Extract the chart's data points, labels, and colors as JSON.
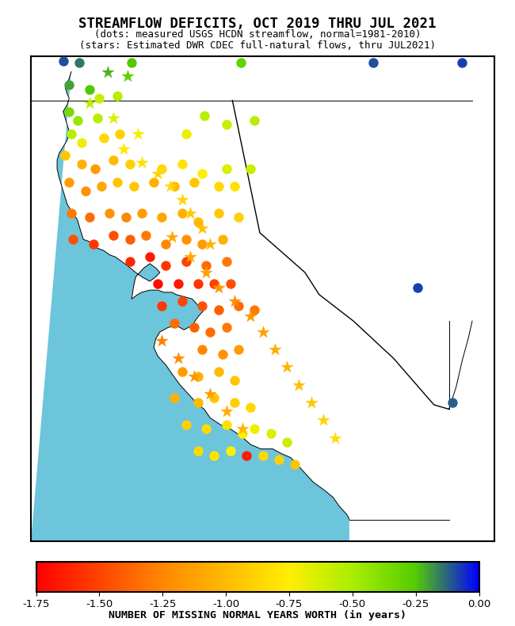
{
  "title_line1": "STREAMFLOW DEFICITS, OCT 2019 THRU JUL 2021",
  "title_line2": "(dots: measured USGS HCDN streamflow, normal=1981-2010)",
  "title_line3": "(stars: Estimated DWR CDEC full-natural flows, thru JUL2021)",
  "colorbar_label": "NUMBER OF MISSING NORMAL YEARS WORTH (in years)",
  "colorbar_ticks": [
    -1.75,
    -1.5,
    -1.25,
    -1.0,
    -0.75,
    -0.5,
    -0.25,
    0.0
  ],
  "vmin": -1.75,
  "vmax": 0.0,
  "map_xlim": [
    -125.0,
    -113.5
  ],
  "map_ylim": [
    32.0,
    43.0
  ],
  "ocean_color": "#6CC5DA",
  "land_color": "#FFFFFF",
  "dots": [
    {
      "lon": -124.2,
      "lat": 42.9,
      "val": -0.1
    },
    {
      "lon": -123.8,
      "lat": 42.85,
      "val": -0.15
    },
    {
      "lon": -122.5,
      "lat": 42.85,
      "val": -0.25
    },
    {
      "lon": -119.8,
      "lat": 42.85,
      "val": -0.3
    },
    {
      "lon": -116.5,
      "lat": 42.85,
      "val": -0.1
    },
    {
      "lon": -114.3,
      "lat": 42.85,
      "val": -0.08
    },
    {
      "lon": -124.05,
      "lat": 42.35,
      "val": -0.2
    },
    {
      "lon": -123.55,
      "lat": 42.25,
      "val": -0.25
    },
    {
      "lon": -123.3,
      "lat": 42.05,
      "val": -0.6
    },
    {
      "lon": -122.85,
      "lat": 42.1,
      "val": -0.55
    },
    {
      "lon": -124.05,
      "lat": 41.75,
      "val": -0.35
    },
    {
      "lon": -123.85,
      "lat": 41.55,
      "val": -0.45
    },
    {
      "lon": -123.35,
      "lat": 41.6,
      "val": -0.55
    },
    {
      "lon": -120.7,
      "lat": 41.65,
      "val": -0.55
    },
    {
      "lon": -124.0,
      "lat": 41.25,
      "val": -0.55
    },
    {
      "lon": -123.75,
      "lat": 41.05,
      "val": -0.7
    },
    {
      "lon": -123.2,
      "lat": 41.15,
      "val": -0.85
    },
    {
      "lon": -122.8,
      "lat": 41.25,
      "val": -0.9
    },
    {
      "lon": -121.15,
      "lat": 41.25,
      "val": -0.7
    },
    {
      "lon": -120.15,
      "lat": 41.45,
      "val": -0.6
    },
    {
      "lon": -119.45,
      "lat": 41.55,
      "val": -0.55
    },
    {
      "lon": -124.15,
      "lat": 40.75,
      "val": -0.95
    },
    {
      "lon": -123.75,
      "lat": 40.55,
      "val": -1.05
    },
    {
      "lon": -123.4,
      "lat": 40.45,
      "val": -1.15
    },
    {
      "lon": -122.95,
      "lat": 40.65,
      "val": -1.0
    },
    {
      "lon": -122.55,
      "lat": 40.55,
      "val": -0.9
    },
    {
      "lon": -121.75,
      "lat": 40.45,
      "val": -0.85
    },
    {
      "lon": -121.25,
      "lat": 40.55,
      "val": -0.8
    },
    {
      "lon": -120.75,
      "lat": 40.35,
      "val": -0.75
    },
    {
      "lon": -120.15,
      "lat": 40.45,
      "val": -0.65
    },
    {
      "lon": -119.55,
      "lat": 40.45,
      "val": -0.6
    },
    {
      "lon": -124.05,
      "lat": 40.15,
      "val": -1.15
    },
    {
      "lon": -123.65,
      "lat": 39.95,
      "val": -1.2
    },
    {
      "lon": -123.25,
      "lat": 40.05,
      "val": -1.1
    },
    {
      "lon": -122.85,
      "lat": 40.15,
      "val": -0.95
    },
    {
      "lon": -122.45,
      "lat": 40.05,
      "val": -0.95
    },
    {
      "lon": -121.95,
      "lat": 40.15,
      "val": -1.05
    },
    {
      "lon": -121.45,
      "lat": 40.05,
      "val": -1.0
    },
    {
      "lon": -120.95,
      "lat": 40.15,
      "val": -0.95
    },
    {
      "lon": -120.35,
      "lat": 40.05,
      "val": -0.85
    },
    {
      "lon": -119.95,
      "lat": 40.05,
      "val": -0.8
    },
    {
      "lon": -124.0,
      "lat": 39.45,
      "val": -1.3
    },
    {
      "lon": -123.55,
      "lat": 39.35,
      "val": -1.35
    },
    {
      "lon": -123.05,
      "lat": 39.45,
      "val": -1.2
    },
    {
      "lon": -122.65,
      "lat": 39.35,
      "val": -1.25
    },
    {
      "lon": -122.25,
      "lat": 39.45,
      "val": -1.15
    },
    {
      "lon": -121.75,
      "lat": 39.35,
      "val": -1.1
    },
    {
      "lon": -121.25,
      "lat": 39.45,
      "val": -1.05
    },
    {
      "lon": -120.85,
      "lat": 39.25,
      "val": -1.0
    },
    {
      "lon": -120.35,
      "lat": 39.45,
      "val": -0.95
    },
    {
      "lon": -119.85,
      "lat": 39.35,
      "val": -0.9
    },
    {
      "lon": -123.95,
      "lat": 38.85,
      "val": -1.45
    },
    {
      "lon": -123.45,
      "lat": 38.75,
      "val": -1.55
    },
    {
      "lon": -122.95,
      "lat": 38.95,
      "val": -1.45
    },
    {
      "lon": -122.55,
      "lat": 38.85,
      "val": -1.4
    },
    {
      "lon": -122.15,
      "lat": 38.95,
      "val": -1.3
    },
    {
      "lon": -121.65,
      "lat": 38.75,
      "val": -1.25
    },
    {
      "lon": -121.15,
      "lat": 38.85,
      "val": -1.2
    },
    {
      "lon": -120.75,
      "lat": 38.75,
      "val": -1.15
    },
    {
      "lon": -120.25,
      "lat": 38.85,
      "val": -1.05
    },
    {
      "lon": -122.55,
      "lat": 38.35,
      "val": -1.6
    },
    {
      "lon": -122.05,
      "lat": 38.45,
      "val": -1.65
    },
    {
      "lon": -121.65,
      "lat": 38.25,
      "val": -1.55
    },
    {
      "lon": -121.15,
      "lat": 38.35,
      "val": -1.5
    },
    {
      "lon": -120.65,
      "lat": 38.25,
      "val": -1.35
    },
    {
      "lon": -120.15,
      "lat": 38.35,
      "val": -1.3
    },
    {
      "lon": -121.85,
      "lat": 37.85,
      "val": -1.7
    },
    {
      "lon": -121.35,
      "lat": 37.85,
      "val": -1.65
    },
    {
      "lon": -120.85,
      "lat": 37.85,
      "val": -1.55
    },
    {
      "lon": -120.45,
      "lat": 37.85,
      "val": -1.5
    },
    {
      "lon": -120.05,
      "lat": 37.85,
      "val": -1.45
    },
    {
      "lon": -121.75,
      "lat": 37.35,
      "val": -1.55
    },
    {
      "lon": -121.25,
      "lat": 37.45,
      "val": -1.5
    },
    {
      "lon": -120.75,
      "lat": 37.35,
      "val": -1.45
    },
    {
      "lon": -120.35,
      "lat": 37.25,
      "val": -1.4
    },
    {
      "lon": -119.85,
      "lat": 37.35,
      "val": -1.35
    },
    {
      "lon": -119.45,
      "lat": 37.25,
      "val": -1.3
    },
    {
      "lon": -121.45,
      "lat": 36.95,
      "val": -1.35
    },
    {
      "lon": -120.95,
      "lat": 36.85,
      "val": -1.4
    },
    {
      "lon": -120.55,
      "lat": 36.75,
      "val": -1.35
    },
    {
      "lon": -120.15,
      "lat": 36.85,
      "val": -1.3
    },
    {
      "lon": -120.75,
      "lat": 36.35,
      "val": -1.25
    },
    {
      "lon": -120.25,
      "lat": 36.25,
      "val": -1.2
    },
    {
      "lon": -119.85,
      "lat": 36.35,
      "val": -1.15
    },
    {
      "lon": -121.25,
      "lat": 35.85,
      "val": -1.15
    },
    {
      "lon": -120.85,
      "lat": 35.75,
      "val": -1.05
    },
    {
      "lon": -120.35,
      "lat": 35.85,
      "val": -1.0
    },
    {
      "lon": -119.95,
      "lat": 35.65,
      "val": -0.95
    },
    {
      "lon": -121.45,
      "lat": 35.25,
      "val": -1.05
    },
    {
      "lon": -120.85,
      "lat": 35.15,
      "val": -1.0
    },
    {
      "lon": -120.45,
      "lat": 35.25,
      "val": -0.95
    },
    {
      "lon": -119.95,
      "lat": 35.15,
      "val": -0.9
    },
    {
      "lon": -119.55,
      "lat": 35.05,
      "val": -0.85
    },
    {
      "lon": -121.15,
      "lat": 34.65,
      "val": -0.9
    },
    {
      "lon": -120.65,
      "lat": 34.55,
      "val": -0.85
    },
    {
      "lon": -120.15,
      "lat": 34.65,
      "val": -0.8
    },
    {
      "lon": -119.75,
      "lat": 34.45,
      "val": -0.75
    },
    {
      "lon": -119.45,
      "lat": 34.55,
      "val": -0.7
    },
    {
      "lon": -119.05,
      "lat": 34.45,
      "val": -0.65
    },
    {
      "lon": -118.65,
      "lat": 34.25,
      "val": -0.6
    },
    {
      "lon": -120.85,
      "lat": 34.05,
      "val": -0.85
    },
    {
      "lon": -120.45,
      "lat": 33.95,
      "val": -0.8
    },
    {
      "lon": -120.05,
      "lat": 34.05,
      "val": -0.75
    },
    {
      "lon": -119.65,
      "lat": 33.95,
      "val": -1.65
    },
    {
      "lon": -119.25,
      "lat": 33.95,
      "val": -0.85
    },
    {
      "lon": -118.85,
      "lat": 33.85,
      "val": -0.9
    },
    {
      "lon": -118.45,
      "lat": 33.75,
      "val": -0.95
    },
    {
      "lon": -114.55,
      "lat": 35.15,
      "val": -0.12
    },
    {
      "lon": -115.4,
      "lat": 37.75,
      "val": -0.08
    }
  ],
  "stars": [
    {
      "lon": -123.55,
      "lat": 41.95,
      "val": -0.55
    },
    {
      "lon": -122.95,
      "lat": 41.6,
      "val": -0.65
    },
    {
      "lon": -122.35,
      "lat": 41.25,
      "val": -0.72
    },
    {
      "lon": -122.7,
      "lat": 40.9,
      "val": -0.78
    },
    {
      "lon": -122.25,
      "lat": 40.6,
      "val": -0.83
    },
    {
      "lon": -121.85,
      "lat": 40.35,
      "val": -0.88
    },
    {
      "lon": -121.55,
      "lat": 40.05,
      "val": -0.85
    },
    {
      "lon": -121.25,
      "lat": 39.75,
      "val": -0.88
    },
    {
      "lon": -121.05,
      "lat": 39.45,
      "val": -0.92
    },
    {
      "lon": -120.75,
      "lat": 39.1,
      "val": -0.97
    },
    {
      "lon": -120.55,
      "lat": 38.75,
      "val": -1.02
    },
    {
      "lon": -121.05,
      "lat": 38.45,
      "val": -1.08
    },
    {
      "lon": -120.65,
      "lat": 38.1,
      "val": -1.13
    },
    {
      "lon": -120.35,
      "lat": 37.75,
      "val": -1.18
    },
    {
      "lon": -119.95,
      "lat": 37.45,
      "val": -1.22
    },
    {
      "lon": -119.55,
      "lat": 37.1,
      "val": -1.18
    },
    {
      "lon": -119.25,
      "lat": 36.75,
      "val": -1.13
    },
    {
      "lon": -118.95,
      "lat": 36.35,
      "val": -1.08
    },
    {
      "lon": -118.65,
      "lat": 35.95,
      "val": -1.03
    },
    {
      "lon": -118.35,
      "lat": 35.55,
      "val": -0.98
    },
    {
      "lon": -118.05,
      "lat": 35.15,
      "val": -0.93
    },
    {
      "lon": -117.75,
      "lat": 34.75,
      "val": -0.88
    },
    {
      "lon": -117.45,
      "lat": 34.35,
      "val": -0.83
    },
    {
      "lon": -121.75,
      "lat": 36.55,
      "val": -1.28
    },
    {
      "lon": -121.35,
      "lat": 36.15,
      "val": -1.23
    },
    {
      "lon": -120.95,
      "lat": 35.75,
      "val": -1.18
    },
    {
      "lon": -120.55,
      "lat": 35.35,
      "val": -1.13
    },
    {
      "lon": -120.15,
      "lat": 34.95,
      "val": -1.08
    },
    {
      "lon": -119.75,
      "lat": 34.55,
      "val": -1.03
    },
    {
      "lon": -121.5,
      "lat": 38.9,
      "val": -1.1
    },
    {
      "lon": -123.1,
      "lat": 42.65,
      "val": -0.22
    },
    {
      "lon": -122.6,
      "lat": 42.55,
      "val": -0.28
    }
  ],
  "marker_size_dots": 80,
  "marker_size_stars": 130,
  "ca_coast_lon": [
    -117.1,
    -117.15,
    -117.25,
    -117.35,
    -117.5,
    -117.7,
    -118.0,
    -118.3,
    -118.55,
    -118.8,
    -119.0,
    -119.3,
    -119.55,
    -119.8,
    -120.05,
    -120.3,
    -120.55,
    -120.7,
    -120.85,
    -121.0,
    -121.15,
    -121.3,
    -121.5,
    -121.65,
    -121.85,
    -121.95,
    -121.9,
    -121.8,
    -121.6,
    -121.4,
    -121.2,
    -121.0,
    -120.85,
    -120.7,
    -120.85,
    -121.0,
    -121.2,
    -121.4,
    -121.5,
    -121.7,
    -121.85,
    -122.05,
    -122.25,
    -122.35,
    -122.5,
    -122.45,
    -122.4,
    -122.2,
    -122.05,
    -121.9,
    -121.8,
    -121.9,
    -122.05,
    -122.25,
    -122.4,
    -122.6,
    -122.75,
    -122.9,
    -123.05,
    -123.2,
    -123.35,
    -123.45,
    -123.55,
    -123.7,
    -123.75,
    -123.8,
    -123.85,
    -124.0,
    -124.1,
    -124.15,
    -124.2,
    -124.25,
    -124.3,
    -124.35,
    -124.35,
    -124.3,
    -124.2,
    -124.1,
    -124.05,
    -124.1,
    -124.15,
    -124.2,
    -124.1,
    -124.05,
    -124.1,
    -124.15,
    -124.05,
    -124.0
  ],
  "ca_coast_lat": [
    32.5,
    32.6,
    32.7,
    32.8,
    33.0,
    33.15,
    33.35,
    33.65,
    33.9,
    34.0,
    34.1,
    34.1,
    34.2,
    34.4,
    34.55,
    34.65,
    34.8,
    35.0,
    35.1,
    35.25,
    35.4,
    35.55,
    35.8,
    36.0,
    36.2,
    36.4,
    36.6,
    36.75,
    36.85,
    36.9,
    36.8,
    36.9,
    37.1,
    37.25,
    37.35,
    37.5,
    37.55,
    37.6,
    37.65,
    37.65,
    37.7,
    37.7,
    37.65,
    37.6,
    37.5,
    37.8,
    38.0,
    38.2,
    38.3,
    38.2,
    38.1,
    38.0,
    37.9,
    38.0,
    38.1,
    38.25,
    38.35,
    38.45,
    38.5,
    38.6,
    38.65,
    38.7,
    38.8,
    38.85,
    39.0,
    39.15,
    39.3,
    39.5,
    39.65,
    39.8,
    39.95,
    40.1,
    40.25,
    40.45,
    40.65,
    40.8,
    40.95,
    41.1,
    41.3,
    41.45,
    41.6,
    41.75,
    41.9,
    42.05,
    42.15,
    42.3,
    42.5,
    42.65
  ],
  "nv_border_lon": [
    -120.0,
    -119.32,
    -118.2,
    -117.85,
    -117.0,
    -116.0,
    -115.0,
    -114.63
  ],
  "nv_border_lat": [
    42.0,
    39.0,
    38.1,
    37.6,
    37.0,
    36.15,
    35.1,
    35.0
  ],
  "nv_east_lon": [
    -114.63,
    -114.63
  ],
  "nv_east_lat": [
    35.0,
    37.0
  ],
  "nv_az_lon": [
    -114.63,
    -114.45,
    -114.3,
    -114.15,
    -114.05
  ],
  "nv_az_lat": [
    35.0,
    35.5,
    36.1,
    36.6,
    37.0
  ]
}
